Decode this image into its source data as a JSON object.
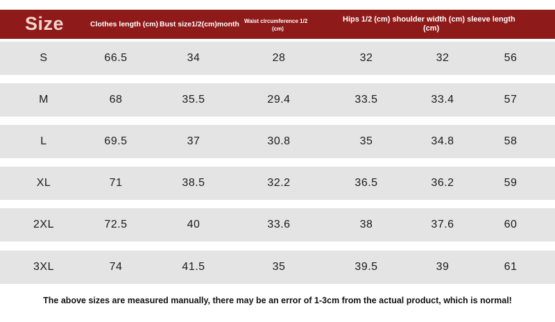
{
  "header": {
    "size_label": "Size",
    "col_clothes_length": "Clothes length (cm)",
    "col_bust": "Bust size1/2(cm)month",
    "col_waist_line1": "Waist circumference 1/2",
    "col_waist_line2": "(cm)",
    "col_hips_shoulder_sleeve_line1": "Hips 1/2 (cm) shoulder width (cm) sleeve length",
    "col_hips_shoulder_sleeve_line2": "(cm)"
  },
  "rows": [
    {
      "size": "S",
      "clothes_length": "66.5",
      "bust": "34",
      "waist": "28",
      "hips": "32",
      "shoulder": "32",
      "sleeve": "56"
    },
    {
      "size": "M",
      "clothes_length": "68",
      "bust": "35.5",
      "waist": "29.4",
      "hips": "33.5",
      "shoulder": "33.4",
      "sleeve": "57"
    },
    {
      "size": "L",
      "clothes_length": "69.5",
      "bust": "37",
      "waist": "30.8",
      "hips": "35",
      "shoulder": "34.8",
      "sleeve": "58"
    },
    {
      "size": "XL",
      "clothes_length": "71",
      "bust": "38.5",
      "waist": "32.2",
      "hips": "36.5",
      "shoulder": "36.2",
      "sleeve": "59"
    },
    {
      "size": "2XL",
      "clothes_length": "72.5",
      "bust": "40",
      "waist": "33.6",
      "hips": "38",
      "shoulder": "37.6",
      "sleeve": "60"
    },
    {
      "size": "3XL",
      "clothes_length": "74",
      "bust": "41.5",
      "waist": "35",
      "hips": "39.5",
      "shoulder": "39",
      "sleeve": "61"
    }
  ],
  "footnote": "The above sizes are measured manually, there may be an error of 1-3cm from the actual product, which is normal!",
  "colors": {
    "header_background": "#8f1a1a",
    "row_background": "#e4e4e4",
    "size_label": "#f1d7c9"
  }
}
